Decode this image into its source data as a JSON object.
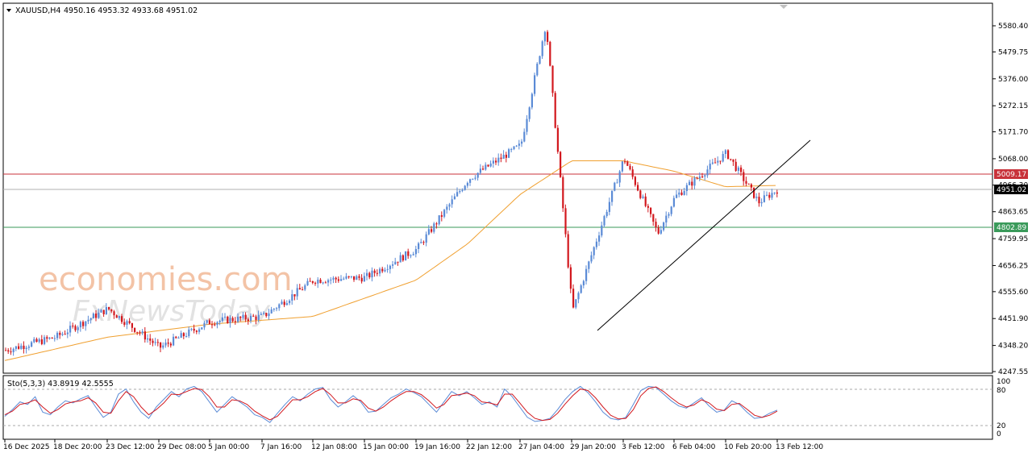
{
  "header": {
    "symbol": "XAUUSD,H4",
    "ohlc": "4950.16 4953.32 4933.68 4951.02"
  },
  "watermark": {
    "line1": "economies.com",
    "line2": "FxNewsToday"
  },
  "colors": {
    "bull": "#5b8bd6",
    "bear": "#d2181e",
    "ma": "#f0a030",
    "resistance": "#c8323a",
    "support": "#3a9a5a",
    "bid": "#b0b0b0",
    "trend": "#000000",
    "stoch_main": "#5b8bd6",
    "stoch_signal": "#d2181e"
  },
  "price_axis": {
    "labels": [
      "5580.40",
      "5479.75",
      "5376.00",
      "5272.15",
      "5171.70",
      "5068.00",
      "4966.30",
      "4863.65",
      "4759.95",
      "4656.25",
      "4555.60",
      "4451.90",
      "4348.20",
      "4247.55"
    ]
  },
  "levels": {
    "resistance": {
      "value": 5009.17,
      "label": "5009.17"
    },
    "support": {
      "value": 4802.89,
      "label": "4802.89"
    },
    "current": {
      "value": 4951.02,
      "label": "4951.02"
    }
  },
  "time_axis": {
    "labels": [
      "16 Dec 2025",
      "18 Dec 20:00",
      "23 Dec 12:00",
      "29 Dec 08:00",
      "5 Jan 00:00",
      "7 Jan 16:00",
      "12 Jan 08:00",
      "15 Jan 00:00",
      "19 Jan 16:00",
      "22 Jan 12:00",
      "27 Jan 04:00",
      "29 Jan 20:00",
      "3 Feb 12:00",
      "6 Feb 04:00",
      "10 Feb 20:00",
      "13 Feb 12:00"
    ]
  },
  "indicator": {
    "title": "Sto(5,3,3) 43.8919 42.5555",
    "levels_labels": [
      "100",
      "80",
      "20",
      "0"
    ],
    "upper": 80,
    "lower": 20
  },
  "chart_data": {
    "type": "candlestick",
    "title": "XAUUSD,H4",
    "ylim": [
      4247.55,
      5600
    ],
    "series_close_anchors": [
      {
        "x": "16 Dec 2025",
        "y": 4330
      },
      {
        "x": "18 Dec 20:00",
        "y": 4380
      },
      {
        "x": "23 Dec 12:00",
        "y": 4490
      },
      {
        "x": "29 Dec 08:00",
        "y": 4340
      },
      {
        "x": "5 Jan 00:00",
        "y": 4440
      },
      {
        "x": "7 Jan 16:00",
        "y": 4460
      },
      {
        "x": "12 Jan 08:00",
        "y": 4600
      },
      {
        "x": "15 Jan 00:00",
        "y": 4610
      },
      {
        "x": "19 Jan 16:00",
        "y": 4720
      },
      {
        "x": "22 Jan 12:00",
        "y": 4990
      },
      {
        "x": "27 Jan 04:00",
        "y": 5120
      },
      {
        "x": "28 Jan",
        "y": 5590
      },
      {
        "x": "29 Jan 20:00",
        "y": 4480
      },
      {
        "x": "3 Feb 12:00",
        "y": 5070
      },
      {
        "x": "5 Feb",
        "y": 4780
      },
      {
        "x": "6 Feb 04:00",
        "y": 4920
      },
      {
        "x": "10 Feb 20:00",
        "y": 5090
      },
      {
        "x": "12 Feb",
        "y": 4900
      },
      {
        "x": "13 Feb 12:00",
        "y": 4951
      }
    ],
    "moving_average_anchors": [
      {
        "x": "16 Dec 2025",
        "y": 4290
      },
      {
        "x": "23 Dec 12:00",
        "y": 4380
      },
      {
        "x": "5 Jan 00:00",
        "y": 4430
      },
      {
        "x": "12 Jan 08:00",
        "y": 4460
      },
      {
        "x": "19 Jan 16:00",
        "y": 4600
      },
      {
        "x": "22 Jan 12:00",
        "y": 4740
      },
      {
        "x": "27 Jan 04:00",
        "y": 4930
      },
      {
        "x": "29 Jan 20:00",
        "y": 5060
      },
      {
        "x": "3 Feb 12:00",
        "y": 5060
      },
      {
        "x": "6 Feb 04:00",
        "y": 5020
      },
      {
        "x": "10 Feb 20:00",
        "y": 4960
      },
      {
        "x": "13 Feb 12:00",
        "y": 4965
      }
    ],
    "trendline": {
      "from": {
        "x": "29 Jan 20:00",
        "y": 4460
      },
      "to": {
        "x": "13 Feb 12:00",
        "y": 5130
      }
    },
    "stochastic": {
      "ylim": [
        0,
        100
      ],
      "main": [
        32,
        45,
        60,
        55,
        70,
        40,
        35,
        50,
        62,
        58,
        66,
        72,
        50,
        30,
        40,
        75,
        85,
        60,
        40,
        28,
        50,
        65,
        80,
        70,
        85,
        90,
        80,
        60,
        40,
        55,
        70,
        60,
        50,
        35,
        30,
        20,
        38,
        55,
        70,
        62,
        75,
        85,
        88,
        65,
        50,
        60,
        72,
        60,
        40,
        42,
        55,
        68,
        75,
        85,
        78,
        70,
        55,
        40,
        60,
        80,
        72,
        80,
        68,
        55,
        60,
        50,
        85,
        70,
        50,
        30,
        22,
        24,
        28,
        45,
        65,
        80,
        90,
        78,
        60,
        40,
        28,
        25,
        30,
        55,
        82,
        90,
        88,
        75,
        62,
        52,
        48,
        58,
        68,
        52,
        40,
        44,
        62,
        55,
        40,
        28,
        30,
        38,
        44
      ],
      "signal": [
        35,
        42,
        55,
        58,
        64,
        50,
        38,
        45,
        56,
        60,
        62,
        68,
        58,
        40,
        38,
        62,
        80,
        70,
        50,
        35,
        45,
        58,
        75,
        74,
        80,
        86,
        84,
        70,
        50,
        50,
        64,
        62,
        55,
        42,
        33,
        25,
        32,
        48,
        64,
        64,
        70,
        80,
        86,
        74,
        58,
        58,
        66,
        63,
        48,
        42,
        50,
        62,
        72,
        80,
        80,
        74,
        62,
        48,
        55,
        72,
        74,
        77,
        72,
        60,
        58,
        54,
        75,
        75,
        58,
        40,
        28,
        24,
        26,
        38,
        56,
        72,
        85,
        82,
        68,
        50,
        34,
        27,
        28,
        45,
        72,
        86,
        89,
        80,
        68,
        57,
        50,
        54,
        64,
        58,
        46,
        43,
        55,
        57,
        46,
        34,
        30,
        34,
        42
      ]
    }
  }
}
